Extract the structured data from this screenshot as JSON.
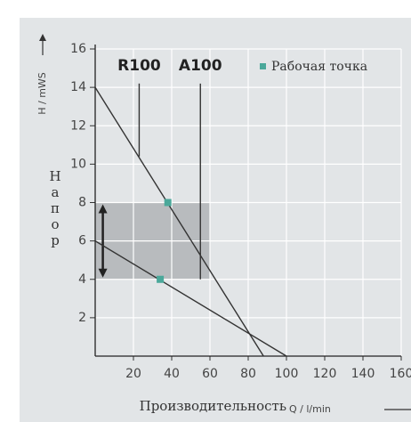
{
  "chart_data": {
    "type": "line",
    "y_label": "H / mWS",
    "y_label_2": "Напор",
    "x_label": "Производительность",
    "x_unit": "Q / l/min",
    "xlim": [
      0,
      160
    ],
    "ylim": [
      0,
      16
    ],
    "xticks": [
      20,
      40,
      60,
      80,
      100,
      120,
      140,
      160
    ],
    "yticks": [
      2,
      4,
      6,
      8,
      10,
      12,
      14,
      16
    ],
    "grid": true,
    "band": {
      "x": [
        0,
        60
      ],
      "y": [
        4,
        8
      ],
      "color": "#b8bbbe"
    },
    "series": [
      {
        "color": "#333333",
        "x": [
          0,
          88
        ],
        "values": [
          14,
          0
        ]
      },
      {
        "color": "#333333",
        "x": [
          0,
          100
        ],
        "values": [
          6,
          0
        ]
      },
      {
        "name": "R100",
        "color": "#333333",
        "x": [
          23,
          23
        ],
        "values": [
          14.2,
          10.4
        ]
      },
      {
        "name": "A100",
        "color": "#333333",
        "x": [
          55,
          55
        ],
        "values": [
          14.2,
          4
        ]
      }
    ],
    "points": {
      "name": "Рабочая точка",
      "color": "#4aa89a",
      "x": [
        38,
        34
      ],
      "values": [
        8,
        4
      ]
    }
  }
}
